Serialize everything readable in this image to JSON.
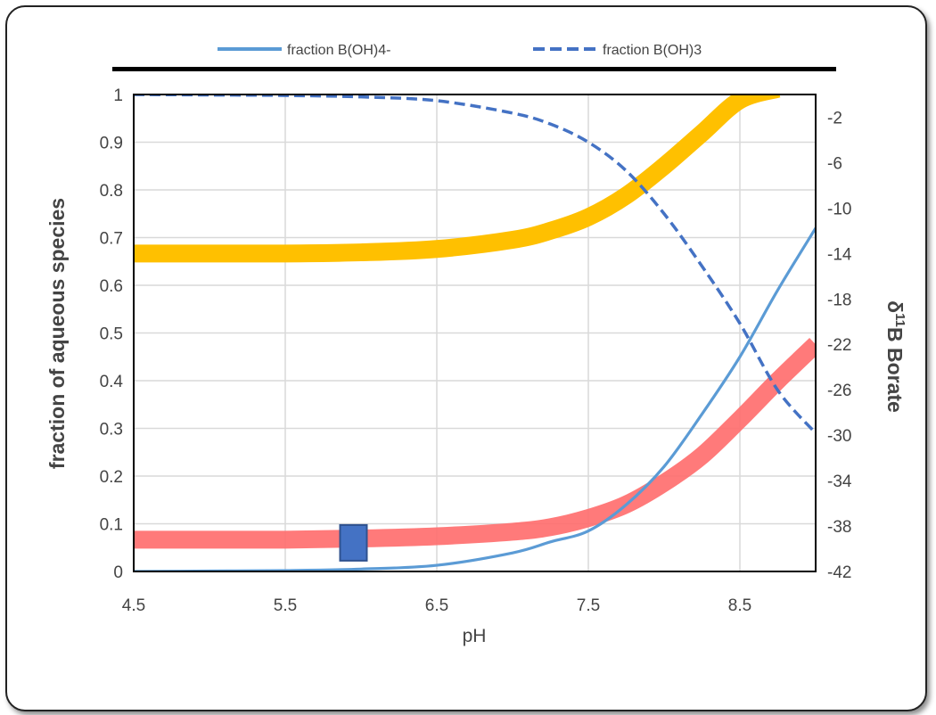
{
  "chart_data": {
    "type": "line",
    "xlabel": "pH",
    "ylabel": "fraction of aqueous species",
    "y2label": "δ¹¹B Borate",
    "y2label_parts": [
      "δ",
      "11",
      "B Borate"
    ],
    "xlim": [
      4.5,
      9.0
    ],
    "ylim": [
      0,
      1
    ],
    "y2lim": [
      -42,
      0
    ],
    "x_ticks": [
      "4.5",
      "5.5",
      "6.5",
      "7.5",
      "8.5"
    ],
    "y_ticks": [
      "0",
      "0.1",
      "0.2",
      "0.3",
      "0.4",
      "0.5",
      "0.6",
      "0.7",
      "0.8",
      "0.9",
      "1"
    ],
    "y2_ticks": [
      "-42",
      "-38",
      "-34",
      "-30",
      "-26",
      "-22",
      "-18",
      "-14",
      "-10",
      "-6",
      "-2"
    ],
    "grid": true,
    "legend_position": "top",
    "series": [
      {
        "name": "fraction B(OH)4-",
        "axis": "left",
        "style": "solid",
        "color": "#5b9bd5",
        "x": [
          4.5,
          5.0,
          5.5,
          6.0,
          6.5,
          7.0,
          7.25,
          7.5,
          7.75,
          8.0,
          8.25,
          8.5,
          8.75,
          9.0
        ],
        "y": [
          0.0,
          0.001,
          0.002,
          0.005,
          0.013,
          0.039,
          0.062,
          0.085,
          0.14,
          0.22,
          0.33,
          0.45,
          0.59,
          0.72
        ]
      },
      {
        "name": "fraction B(OH)3",
        "axis": "left",
        "style": "dashed",
        "color": "#4472c4",
        "x": [
          4.5,
          5.0,
          5.5,
          6.0,
          6.5,
          7.0,
          7.25,
          7.5,
          7.75,
          8.0,
          8.25,
          8.5,
          8.75,
          9.0
        ],
        "y": [
          1.0,
          0.999,
          0.998,
          0.995,
          0.987,
          0.961,
          0.938,
          0.9,
          0.84,
          0.75,
          0.64,
          0.52,
          0.38,
          0.29
        ]
      },
      {
        "axis": "right",
        "style": "band",
        "color": "#ffc000",
        "x": [
          4.5,
          5.0,
          5.5,
          6.0,
          6.5,
          7.0,
          7.25,
          7.5,
          7.75,
          8.0,
          8.25,
          8.5,
          8.75
        ],
        "y": [
          -14.0,
          -14.0,
          -14.0,
          -13.9,
          -13.6,
          -12.8,
          -12.0,
          -10.8,
          -8.9,
          -6.3,
          -3.4,
          -0.5,
          0.5
        ]
      },
      {
        "axis": "right",
        "style": "band",
        "color": "#ff6b6b",
        "x": [
          4.5,
          5.0,
          5.5,
          6.0,
          6.5,
          7.0,
          7.25,
          7.5,
          7.75,
          8.0,
          8.25,
          8.5,
          8.75,
          9.0
        ],
        "y": [
          -39.2,
          -39.2,
          -39.2,
          -39.1,
          -38.9,
          -38.5,
          -38.1,
          -37.3,
          -36.1,
          -34.2,
          -31.8,
          -28.6,
          -25.2,
          -22.0
        ]
      }
    ],
    "markers": [
      {
        "shape": "square",
        "color": "#4472c4",
        "x": 5.95,
        "y": 0.06
      }
    ]
  }
}
